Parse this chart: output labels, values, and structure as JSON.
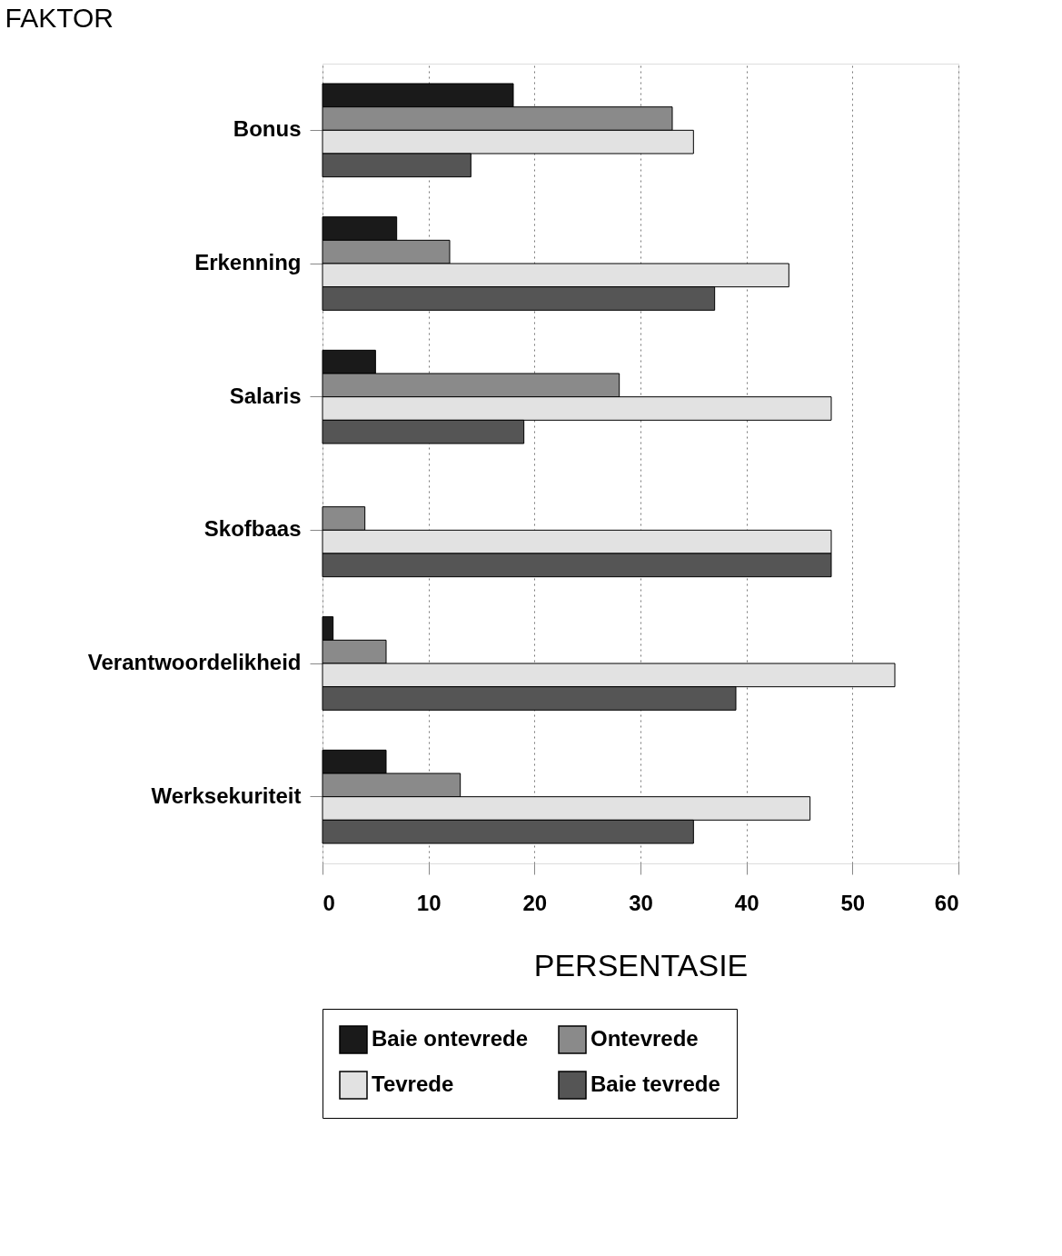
{
  "chart_data": {
    "type": "bar",
    "orientation": "horizontal",
    "xlabel": "PERSENTASIE",
    "ylabel": "FAKTOR",
    "categories": [
      "Bonus",
      "Erkenning",
      "Salaris",
      "Skofbaas",
      "Verantwoordelikheid",
      "Werksekuriteit"
    ],
    "series": [
      {
        "name": "Baie ontevrede",
        "color": "#1a1a1a",
        "values": [
          18,
          7,
          5,
          null,
          1,
          6
        ]
      },
      {
        "name": "Ontevrede",
        "color": "#8a8a8a",
        "values": [
          33,
          12,
          28,
          4,
          6,
          13
        ]
      },
      {
        "name": "Tevrede",
        "color": "#e2e2e2",
        "values": [
          35,
          44,
          48,
          48,
          54,
          46
        ]
      },
      {
        "name": "Baie tevrede",
        "color": "#555555",
        "values": [
          14,
          37,
          19,
          48,
          39,
          35
        ]
      }
    ],
    "xlim": [
      0,
      60
    ],
    "xticks": [
      0,
      10,
      20,
      30,
      40,
      50,
      60
    ],
    "grid": "x",
    "legend": "bottom"
  }
}
